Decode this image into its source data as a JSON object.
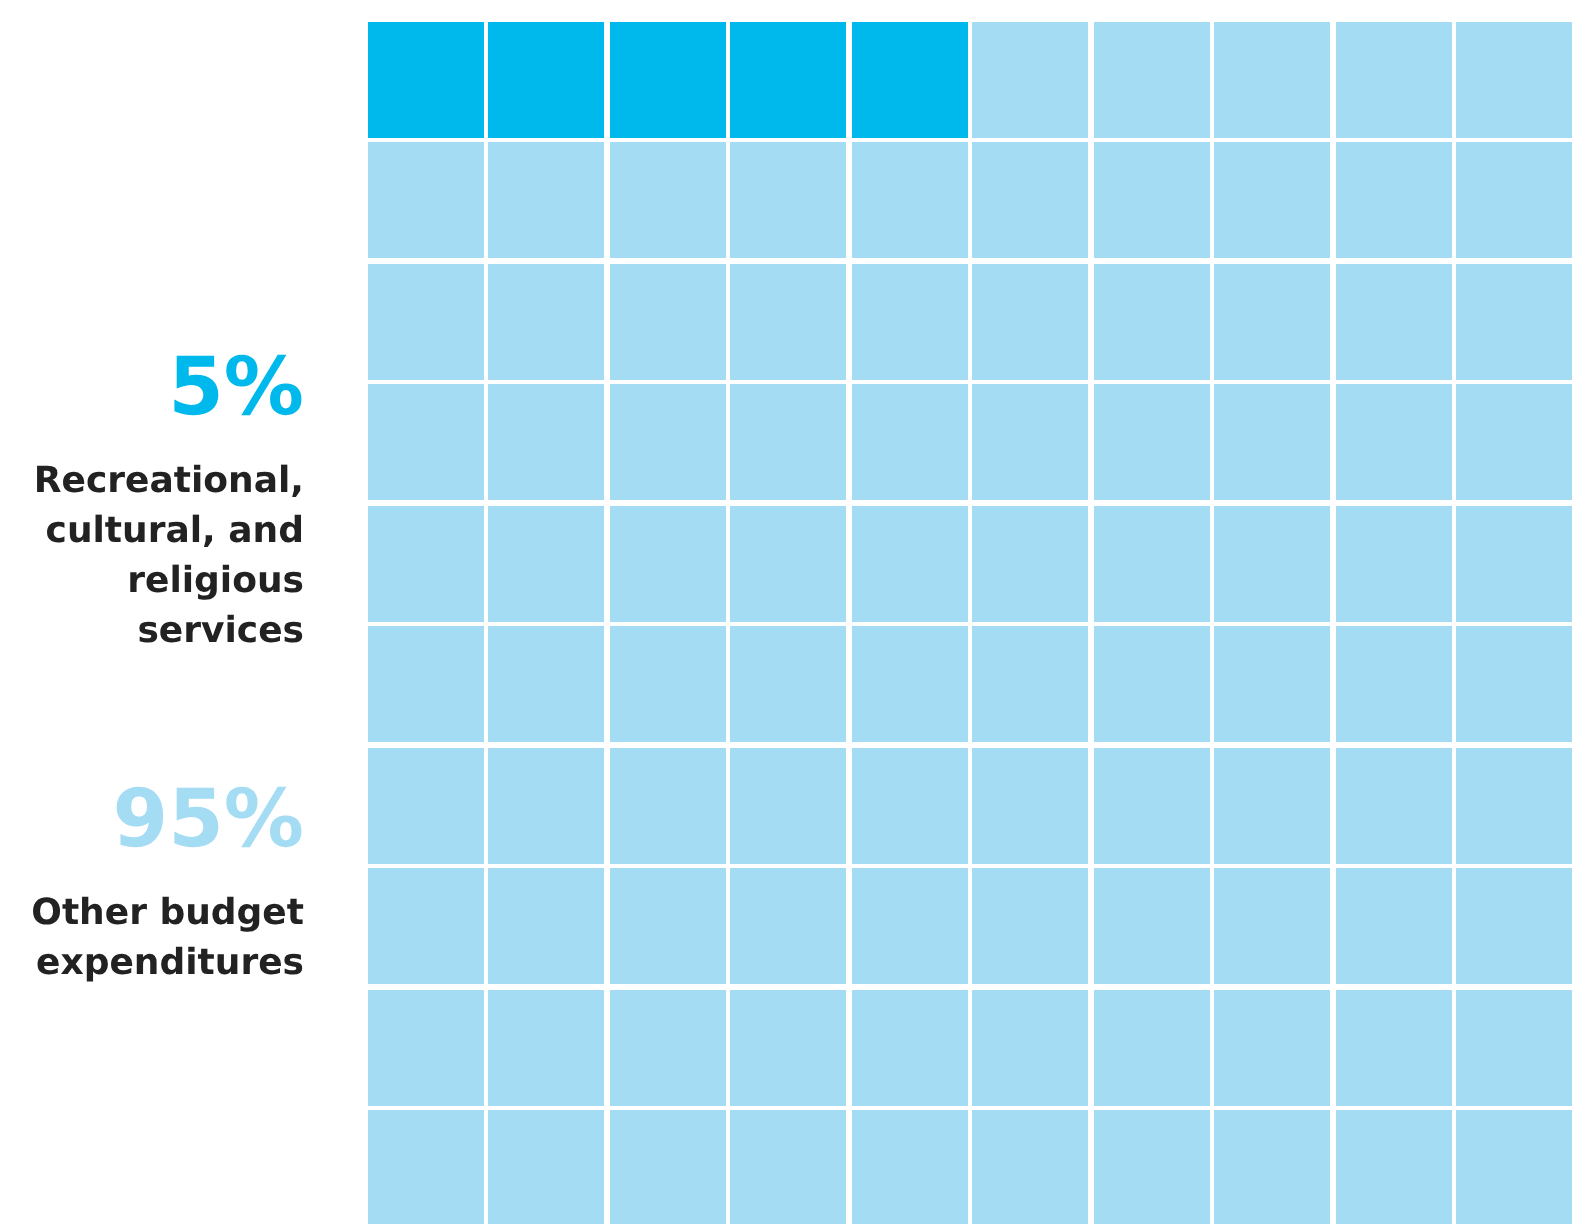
{
  "chart_data": {
    "type": "other",
    "categories": [
      "Recreational, cultural, and religious services",
      "Other budget expenditures"
    ],
    "values": [
      5,
      95
    ],
    "value_labels": [
      "5%",
      "95%"
    ],
    "colors": [
      "#00b9ec",
      "#a4dcf4"
    ]
  }
}
